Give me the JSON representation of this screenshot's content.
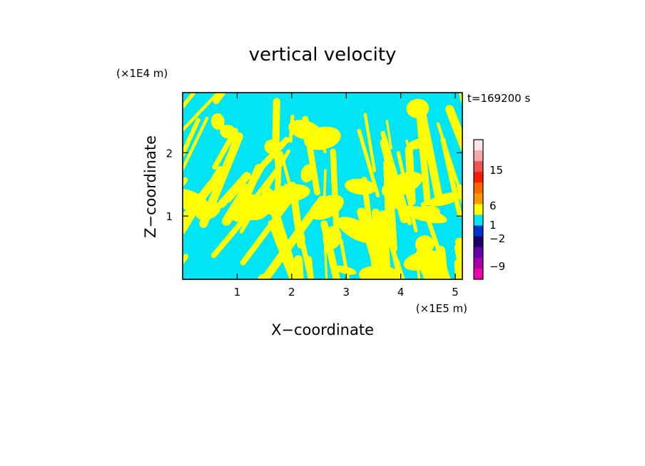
{
  "chart_data": {
    "type": "heatmap",
    "title": "vertical velocity",
    "xlabel": "X−coordinate",
    "ylabel": "Z−coordinate",
    "x_unit": "(×1E5 m)",
    "y_unit": "(×1E4 m)",
    "time_label": "t=169200 s",
    "xlim": [
      0,
      5.13
    ],
    "ylim": [
      0,
      2.95
    ],
    "x_ticks": [
      1,
      2,
      3,
      4,
      5
    ],
    "y_ticks": [
      1,
      2
    ],
    "field_colors": {
      "positive": "#ffff00",
      "negative": "#00e5f5"
    },
    "colorbar": {
      "tick_labels": [
        "15",
        "6",
        "1",
        "−2",
        "−9"
      ],
      "tick_values": [
        15,
        6,
        1,
        -2,
        -9
      ],
      "levels_top_to_bottom": [
        {
          "color": "#fbe6e6"
        },
        {
          "color": "#f4a8a8"
        },
        {
          "color": "#ee5555"
        },
        {
          "color": "#ff1a00"
        },
        {
          "color": "#ff6600"
        },
        {
          "color": "#ff9900"
        },
        {
          "color": "#ffff00"
        },
        {
          "color": "#00e5f5"
        },
        {
          "color": "#0033cc"
        },
        {
          "color": "#1a0066"
        },
        {
          "color": "#6600aa"
        },
        {
          "color": "#aa00aa"
        },
        {
          "color": "#ee00aa"
        }
      ]
    }
  }
}
